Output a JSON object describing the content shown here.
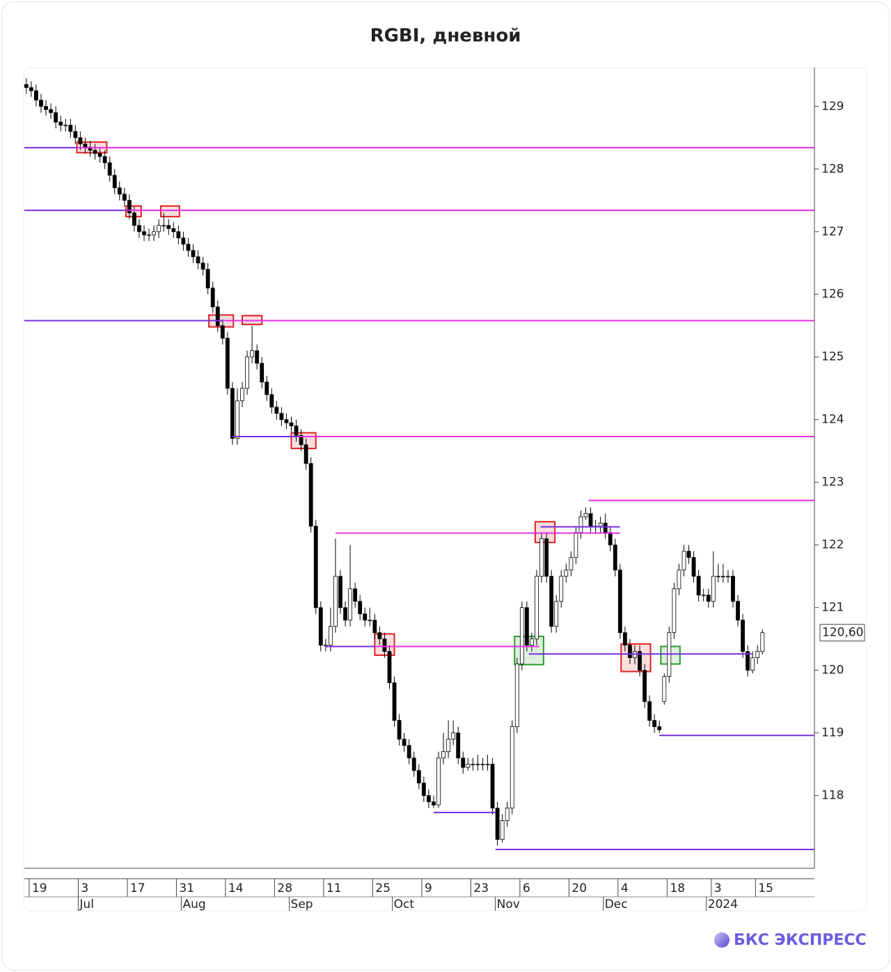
{
  "chart_data": {
    "type": "candlestick",
    "title": "RGBI, дневной",
    "ylim": [
      116.84,
      129.62
    ],
    "yticks": [
      118,
      119,
      120,
      121,
      122,
      123,
      124,
      125,
      126,
      127,
      128,
      129
    ],
    "xlim": [
      -0.4,
      160.6
    ],
    "xticks": [
      {
        "value": 2,
        "label": "19"
      },
      {
        "value": 12,
        "label": "3"
      },
      {
        "value": 22,
        "label": "17"
      },
      {
        "value": 32,
        "label": "31"
      },
      {
        "value": 42,
        "label": "14"
      },
      {
        "value": 52,
        "label": "28"
      },
      {
        "value": 62,
        "label": "11"
      },
      {
        "value": 72,
        "label": "25"
      },
      {
        "value": 82,
        "label": "9"
      },
      {
        "value": 92,
        "label": "23"
      },
      {
        "value": 102,
        "label": "6"
      },
      {
        "value": 112,
        "label": "20"
      },
      {
        "value": 122,
        "label": "4"
      },
      {
        "value": 132,
        "label": "18"
      },
      {
        "value": 141,
        "label": "3"
      },
      {
        "value": 150,
        "label": "15"
      }
    ],
    "months": [
      {
        "value": 12,
        "label": "Jul"
      },
      {
        "value": 33,
        "label": "Aug"
      },
      {
        "value": 55,
        "label": "Sep"
      },
      {
        "value": 76,
        "label": "Oct"
      },
      {
        "value": 97,
        "label": "Nov"
      },
      {
        "value": 119,
        "label": "Dec"
      },
      {
        "value": 140,
        "label": "2024"
      }
    ],
    "up_color": "#ffffff",
    "down_color": "#000000",
    "ohlc": [
      [
        129.35,
        129.45,
        129.2,
        129.3
      ],
      [
        129.3,
        129.4,
        129.15,
        129.25
      ],
      [
        129.25,
        129.35,
        129.0,
        129.1
      ],
      [
        129.1,
        129.2,
        128.9,
        129.0
      ],
      [
        129.0,
        129.1,
        128.85,
        128.95
      ],
      [
        128.95,
        129.05,
        128.8,
        128.9
      ],
      [
        128.9,
        129.0,
        128.65,
        128.75
      ],
      [
        128.75,
        128.85,
        128.6,
        128.7
      ],
      [
        128.7,
        128.8,
        128.6,
        128.7
      ],
      [
        128.7,
        128.8,
        128.5,
        128.6
      ],
      [
        128.6,
        128.7,
        128.4,
        128.5
      ],
      [
        128.5,
        128.6,
        128.3,
        128.4
      ],
      [
        128.4,
        128.5,
        128.25,
        128.35
      ],
      [
        128.35,
        128.45,
        128.2,
        128.3
      ],
      [
        128.3,
        128.4,
        128.15,
        128.25
      ],
      [
        128.25,
        128.35,
        128.1,
        128.2
      ],
      [
        128.2,
        128.3,
        128.0,
        128.1
      ],
      [
        128.1,
        128.2,
        127.8,
        127.9
      ],
      [
        127.9,
        128.0,
        127.6,
        127.7
      ],
      [
        127.7,
        127.8,
        127.5,
        127.6
      ],
      [
        127.6,
        127.7,
        127.4,
        127.5
      ],
      [
        127.5,
        127.6,
        127.2,
        127.3
      ],
      [
        127.3,
        127.4,
        127.0,
        127.1
      ],
      [
        127.1,
        127.2,
        126.9,
        127.0
      ],
      [
        127.0,
        127.1,
        126.85,
        126.95
      ],
      [
        126.95,
        127.05,
        126.85,
        126.95
      ],
      [
        126.95,
        127.1,
        126.85,
        127.0
      ],
      [
        127.0,
        127.2,
        126.9,
        127.1
      ],
      [
        127.1,
        127.3,
        127.0,
        127.1
      ],
      [
        127.1,
        127.2,
        126.95,
        127.05
      ],
      [
        127.05,
        127.15,
        126.9,
        127.0
      ],
      [
        127.0,
        127.1,
        126.8,
        126.9
      ],
      [
        126.9,
        127.0,
        126.7,
        126.8
      ],
      [
        126.8,
        126.9,
        126.6,
        126.7
      ],
      [
        126.7,
        126.8,
        126.5,
        126.6
      ],
      [
        126.6,
        126.7,
        126.4,
        126.5
      ],
      [
        126.5,
        126.6,
        126.3,
        126.4
      ],
      [
        126.4,
        126.5,
        126.0,
        126.1
      ],
      [
        126.1,
        126.2,
        125.7,
        125.8
      ],
      [
        125.8,
        125.9,
        125.4,
        125.5
      ],
      [
        125.5,
        125.6,
        125.2,
        125.3
      ],
      [
        125.3,
        125.4,
        124.4,
        124.5
      ],
      [
        124.5,
        124.6,
        123.6,
        123.7
      ],
      [
        123.7,
        124.5,
        123.6,
        124.3
      ],
      [
        124.3,
        124.6,
        124.2,
        124.5
      ],
      [
        124.5,
        125.1,
        124.4,
        125.0
      ],
      [
        125.0,
        125.5,
        124.9,
        125.1
      ],
      [
        125.1,
        125.2,
        124.8,
        124.9
      ],
      [
        124.9,
        125.0,
        124.5,
        124.6
      ],
      [
        124.6,
        124.7,
        124.3,
        124.4
      ],
      [
        124.4,
        124.5,
        124.1,
        124.2
      ],
      [
        124.2,
        124.3,
        124.0,
        124.1
      ],
      [
        124.1,
        124.2,
        123.9,
        124.0
      ],
      [
        124.0,
        124.1,
        123.85,
        123.95
      ],
      [
        123.95,
        124.05,
        123.8,
        123.9
      ],
      [
        123.9,
        124.0,
        123.65,
        123.75
      ],
      [
        123.75,
        123.85,
        123.5,
        123.6
      ],
      [
        123.6,
        123.7,
        123.2,
        123.3
      ],
      [
        123.3,
        123.4,
        122.2,
        122.3
      ],
      [
        122.3,
        122.4,
        120.9,
        121.0
      ],
      [
        121.0,
        121.1,
        120.3,
        120.4
      ],
      [
        120.4,
        120.5,
        120.3,
        120.4
      ],
      [
        120.4,
        121.0,
        120.3,
        120.7
      ],
      [
        120.7,
        122.1,
        120.6,
        121.5
      ],
      [
        121.5,
        121.6,
        120.9,
        121.0
      ],
      [
        121.0,
        121.1,
        120.7,
        120.8
      ],
      [
        120.8,
        122.0,
        120.7,
        121.3
      ],
      [
        121.3,
        121.4,
        121.0,
        121.1
      ],
      [
        121.1,
        121.2,
        120.8,
        120.9
      ],
      [
        120.9,
        121.0,
        120.7,
        120.8
      ],
      [
        120.8,
        121.0,
        120.7,
        120.8
      ],
      [
        120.8,
        120.9,
        120.5,
        120.6
      ],
      [
        120.6,
        120.7,
        120.4,
        120.5
      ],
      [
        120.5,
        120.6,
        120.2,
        120.3
      ],
      [
        120.3,
        120.4,
        119.7,
        119.8
      ],
      [
        119.8,
        119.9,
        119.1,
        119.2
      ],
      [
        119.2,
        119.3,
        118.8,
        118.9
      ],
      [
        118.9,
        119.0,
        118.7,
        118.8
      ],
      [
        118.8,
        118.9,
        118.5,
        118.6
      ],
      [
        118.6,
        118.7,
        118.3,
        118.4
      ],
      [
        118.4,
        118.5,
        118.1,
        118.2
      ],
      [
        118.2,
        118.3,
        117.9,
        118.0
      ],
      [
        118.0,
        118.1,
        117.8,
        117.9
      ],
      [
        117.9,
        118.0,
        117.8,
        117.85
      ],
      [
        117.85,
        118.7,
        117.8,
        118.6
      ],
      [
        118.6,
        119.0,
        118.5,
        118.7
      ],
      [
        118.7,
        119.2,
        118.6,
        118.9
      ],
      [
        118.9,
        119.2,
        118.8,
        119.0
      ],
      [
        119.0,
        119.1,
        118.5,
        118.6
      ],
      [
        118.6,
        118.7,
        118.35,
        118.45
      ],
      [
        118.45,
        118.6,
        118.4,
        118.5
      ],
      [
        118.5,
        118.6,
        118.4,
        118.5
      ],
      [
        118.5,
        118.65,
        118.4,
        118.5
      ],
      [
        118.5,
        118.6,
        118.4,
        118.5
      ],
      [
        118.5,
        118.65,
        118.4,
        118.5
      ],
      [
        118.5,
        118.6,
        117.7,
        117.8
      ],
      [
        117.8,
        117.9,
        117.2,
        117.3
      ],
      [
        117.3,
        117.7,
        117.25,
        117.6
      ],
      [
        117.6,
        117.9,
        117.5,
        117.8
      ],
      [
        117.8,
        119.2,
        117.7,
        119.1
      ],
      [
        119.1,
        120.2,
        119.0,
        120.1
      ],
      [
        120.1,
        121.1,
        120.0,
        121.0
      ],
      [
        121.0,
        121.1,
        120.3,
        120.4
      ],
      [
        120.4,
        120.6,
        120.3,
        120.5
      ],
      [
        120.5,
        121.6,
        120.4,
        121.5
      ],
      [
        121.5,
        122.2,
        121.4,
        122.1
      ],
      [
        122.1,
        122.2,
        121.4,
        121.5
      ],
      [
        121.5,
        121.6,
        120.6,
        120.7
      ],
      [
        120.7,
        121.2,
        120.6,
        121.1
      ],
      [
        121.1,
        121.6,
        121.0,
        121.5
      ],
      [
        121.5,
        121.7,
        121.4,
        121.6
      ],
      [
        121.6,
        121.9,
        121.5,
        121.8
      ],
      [
        121.8,
        122.3,
        121.7,
        122.2
      ],
      [
        122.2,
        122.55,
        122.1,
        122.45
      ],
      [
        122.45,
        122.6,
        122.4,
        122.5
      ],
      [
        122.5,
        122.6,
        122.2,
        122.3
      ],
      [
        122.3,
        122.4,
        122.2,
        122.3
      ],
      [
        122.3,
        122.45,
        122.2,
        122.35
      ],
      [
        122.35,
        122.5,
        122.1,
        122.2
      ],
      [
        122.2,
        122.3,
        121.9,
        122.0
      ],
      [
        122.0,
        122.1,
        121.5,
        121.6
      ],
      [
        121.6,
        121.7,
        120.5,
        120.6
      ],
      [
        120.6,
        120.7,
        120.3,
        120.4
      ],
      [
        120.4,
        120.5,
        120.1,
        120.2
      ],
      [
        120.2,
        120.4,
        120.1,
        120.3
      ],
      [
        120.3,
        120.4,
        119.9,
        120.0
      ],
      [
        120.0,
        120.1,
        119.4,
        119.5
      ],
      [
        119.5,
        119.6,
        119.1,
        119.2
      ],
      [
        119.2,
        119.3,
        119.0,
        119.1
      ],
      [
        119.1,
        119.2,
        119.0,
        119.05
      ],
      [
        119.5,
        119.95,
        119.45,
        119.9
      ],
      [
        119.9,
        120.7,
        119.8,
        120.6
      ],
      [
        120.6,
        121.4,
        120.5,
        121.3
      ],
      [
        121.3,
        121.7,
        121.2,
        121.6
      ],
      [
        121.6,
        122.0,
        121.5,
        121.9
      ],
      [
        121.9,
        122.0,
        121.7,
        121.8
      ],
      [
        121.8,
        121.9,
        121.4,
        121.5
      ],
      [
        121.5,
        121.6,
        121.1,
        121.2
      ],
      [
        121.2,
        121.3,
        121.1,
        121.2
      ],
      [
        121.2,
        121.3,
        121.0,
        121.1
      ],
      [
        121.1,
        121.9,
        121.0,
        121.5
      ],
      [
        121.5,
        121.7,
        121.4,
        121.5
      ],
      [
        121.5,
        121.7,
        121.4,
        121.5
      ],
      [
        121.5,
        121.6,
        121.4,
        121.5
      ],
      [
        121.5,
        121.6,
        121.0,
        121.1
      ],
      [
        121.1,
        121.2,
        120.7,
        120.8
      ],
      [
        120.8,
        120.9,
        120.2,
        120.3
      ],
      [
        120.3,
        120.4,
        119.9,
        120.0
      ],
      [
        120.0,
        120.3,
        119.95,
        120.2
      ],
      [
        120.2,
        120.4,
        120.1,
        120.3
      ],
      [
        120.3,
        120.65,
        120.25,
        120.6
      ]
    ],
    "last_price": {
      "value": 120.6,
      "label": "120,60"
    },
    "levels": [
      {
        "price": 128.34,
        "from": -0.4,
        "to": 10.3,
        "color": "#7a2be0"
      },
      {
        "price": 128.34,
        "from": 10.3,
        "to": 160.6,
        "color": "#e52ee5"
      },
      {
        "price": 127.34,
        "from": -0.4,
        "to": 20.8,
        "color": "#7a2be0"
      },
      {
        "price": 127.34,
        "from": 20.8,
        "to": 160.6,
        "color": "#e52ee5"
      },
      {
        "price": 125.58,
        "from": -0.4,
        "to": 40,
        "color": "#7a2be0"
      },
      {
        "price": 125.58,
        "from": 40,
        "to": 160.6,
        "color": "#e52ee5"
      },
      {
        "price": 123.73,
        "from": 42,
        "to": 55.6,
        "color": "#7a2be0"
      },
      {
        "price": 123.73,
        "from": 55.6,
        "to": 160.6,
        "color": "#e52ee5"
      },
      {
        "price": 122.19,
        "from": 63,
        "to": 121,
        "color": "#e52ee5"
      },
      {
        "price": 122.71,
        "from": 114.6,
        "to": 160.6,
        "color": "#e52ee5"
      },
      {
        "price": 122.29,
        "from": 104.8,
        "to": 121,
        "color": "#7a2be0"
      },
      {
        "price": 120.38,
        "from": 61,
        "to": 71.2,
        "color": "#7a2be0"
      },
      {
        "price": 120.38,
        "from": 71.2,
        "to": 104.5,
        "color": "#e52ee5"
      },
      {
        "price": 120.26,
        "from": 102.4,
        "to": 147.8,
        "color": "#7a2be0"
      },
      {
        "price": 118.96,
        "from": 129,
        "to": 160.6,
        "color": "#7a2be0"
      },
      {
        "price": 117.73,
        "from": 83,
        "to": 95.6,
        "color": "#7a2be0"
      },
      {
        "price": 117.14,
        "from": 95.6,
        "to": 160.6,
        "color": "#7a2be0"
      }
    ],
    "boxes": [
      {
        "x0": 10.3,
        "x1": 16.4,
        "y0": 128.26,
        "y1": 128.43,
        "color": "#e02020"
      },
      {
        "x0": 20.3,
        "x1": 23.4,
        "y0": 127.24,
        "y1": 127.41,
        "color": "#e02020"
      },
      {
        "x0": 27.4,
        "x1": 31.2,
        "y0": 127.24,
        "y1": 127.41,
        "color": "#e02020"
      },
      {
        "x0": 37.2,
        "x1": 42.2,
        "y0": 125.48,
        "y1": 125.67,
        "color": "#e02020"
      },
      {
        "x0": 44,
        "x1": 48,
        "y0": 125.52,
        "y1": 125.66,
        "color": "#e02020"
      },
      {
        "x0": 54,
        "x1": 59,
        "y0": 123.54,
        "y1": 123.79,
        "color": "#e02020"
      },
      {
        "x0": 71,
        "x1": 75,
        "y0": 120.24,
        "y1": 120.58,
        "color": "#e02020"
      },
      {
        "x0": 103.7,
        "x1": 107.7,
        "y0": 122.04,
        "y1": 122.37,
        "color": "#e02020"
      },
      {
        "x0": 99.5,
        "x1": 105.4,
        "y0": 120.09,
        "y1": 120.54,
        "color": "#2a9a2a"
      },
      {
        "x0": 121.2,
        "x1": 127.2,
        "y0": 119.98,
        "y1": 120.42,
        "color": "#e02020"
      },
      {
        "x0": 129.3,
        "x1": 133.2,
        "y0": 120.1,
        "y1": 120.38,
        "color": "#2a9a2a"
      }
    ]
  },
  "footer": {
    "brand": "БКС ЭКСПРЕСС"
  }
}
